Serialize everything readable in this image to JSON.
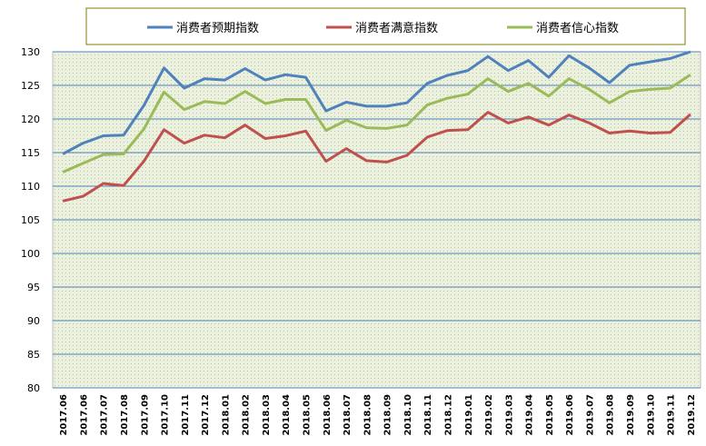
{
  "chart_data": {
    "type": "line",
    "title": "",
    "xlabel": "",
    "ylabel": "",
    "ylim": [
      80,
      130
    ],
    "yticks": [
      80,
      85,
      90,
      95,
      100,
      105,
      110,
      115,
      120,
      125,
      130
    ],
    "grid": "horizontal",
    "legend_position": "top",
    "categories": [
      "2017.06",
      "2017.06",
      "2017.07",
      "2017.08",
      "2017.09",
      "2017.10",
      "2017.11",
      "2017.12",
      "2018.01",
      "2018.02",
      "2018.03",
      "2018.04",
      "2018.05",
      "2018.06",
      "2018.07",
      "2018.08",
      "2018.09",
      "2018.10",
      "2018.11",
      "2018.12",
      "2019.01",
      "2019.02",
      "2019.03",
      "2019.04",
      "2019.05",
      "2019.06",
      "2019.07",
      "2019.08",
      "2019.09",
      "2019.10",
      "2019.11",
      "2019.12"
    ],
    "series": [
      {
        "name": "消费者预期指数",
        "color": "#4f81bd",
        "values": [
          114.8,
          116.4,
          117.5,
          117.6,
          122.0,
          127.6,
          124.6,
          126.0,
          125.8,
          127.5,
          125.8,
          126.6,
          126.2,
          121.2,
          122.5,
          121.9,
          121.9,
          122.4,
          125.3,
          126.5,
          127.2,
          129.3,
          127.2,
          128.7,
          126.2,
          129.4,
          127.6,
          125.4,
          128.0,
          128.5,
          129.0,
          130.4
        ]
      },
      {
        "name": "消费者满意指数",
        "color": "#c0504d",
        "values": [
          107.8,
          108.5,
          110.4,
          110.1,
          113.7,
          118.4,
          116.4,
          117.6,
          117.2,
          119.1,
          117.1,
          117.5,
          118.2,
          113.7,
          115.6,
          113.8,
          113.6,
          114.6,
          117.3,
          118.3,
          118.4,
          121.0,
          119.4,
          120.3,
          119.1,
          120.6,
          119.4,
          117.9,
          118.2,
          117.9,
          118.0,
          120.7
        ]
      },
      {
        "name": "消费者信心指数",
        "color": "#9bbb59",
        "values": [
          112.1,
          113.4,
          114.7,
          114.8,
          118.5,
          124.0,
          121.4,
          122.6,
          122.3,
          124.1,
          122.3,
          122.9,
          122.9,
          118.3,
          119.8,
          118.7,
          118.6,
          119.1,
          122.1,
          123.1,
          123.7,
          126.0,
          124.1,
          125.3,
          123.4,
          126.0,
          124.4,
          122.4,
          124.1,
          124.4,
          124.6,
          126.6
        ]
      }
    ]
  },
  "colors": {
    "plot_background": "#ebf1de",
    "grid_line": "#4f81bd",
    "legend_border": "#7f7f00"
  }
}
